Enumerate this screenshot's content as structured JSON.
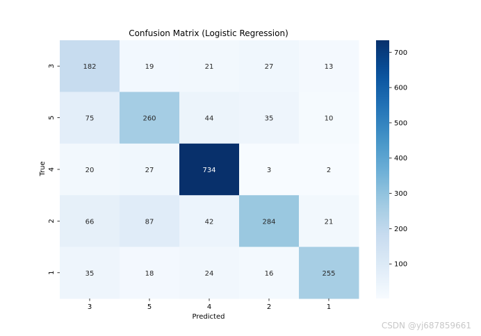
{
  "chart_data": {
    "type": "heatmap",
    "title": "Confusion Matrix (Logistic Regression)",
    "xlabel": "Predicted",
    "ylabel": "True",
    "x_categories": [
      "3",
      "5",
      "4",
      "2",
      "1"
    ],
    "y_categories": [
      "3",
      "5",
      "4",
      "2",
      "1"
    ],
    "values": [
      [
        182,
        19,
        21,
        27,
        13
      ],
      [
        75,
        260,
        44,
        35,
        10
      ],
      [
        20,
        27,
        734,
        3,
        2
      ],
      [
        66,
        87,
        42,
        284,
        21
      ],
      [
        35,
        18,
        24,
        16,
        255
      ]
    ],
    "colormap": "Blues",
    "colorbar": {
      "ticks": [
        100,
        200,
        300,
        400,
        500,
        600,
        700
      ],
      "range": [
        2,
        734
      ]
    },
    "annotation_light_color": "#ffffff",
    "annotation_dark_color": "#262626"
  },
  "watermark": "CSDN @yj687859661"
}
